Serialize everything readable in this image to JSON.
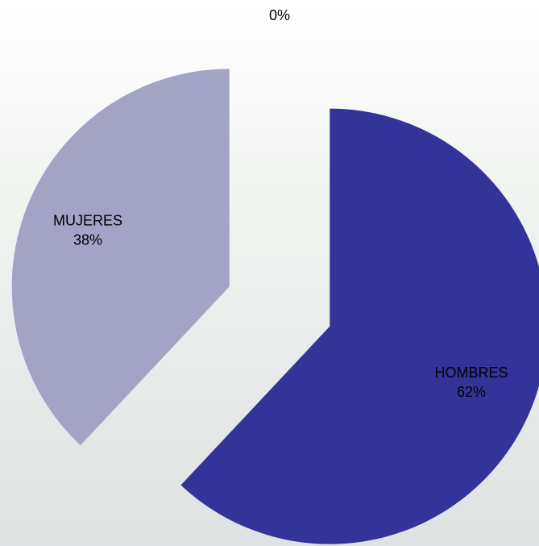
{
  "chart_data": {
    "type": "pie",
    "categories": [
      "HOMBRES",
      "MUJERES",
      null
    ],
    "values": [
      62,
      38,
      0
    ],
    "value_labels": [
      "62%",
      "38%",
      "0%"
    ],
    "colors": [
      "#333399",
      "#a3a3c6",
      "#c8c8dd"
    ],
    "exploded": true
  }
}
